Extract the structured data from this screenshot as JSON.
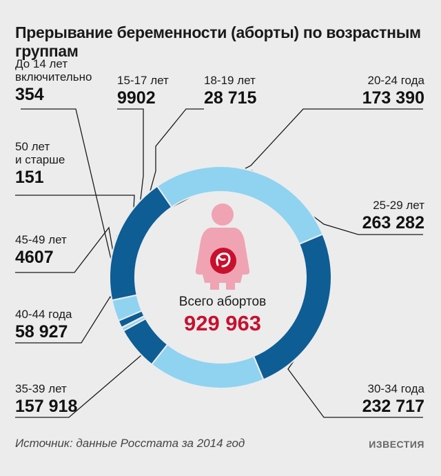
{
  "chart_data": {
    "type": "pie",
    "title": "Прерывание беременности (аборты) по возрастным группам",
    "center_label": "Всего абортов",
    "center_value": "929 963",
    "total": 929963,
    "categories": [
      "До 14 лет включительно",
      "15-17 лет",
      "18-19 лет",
      "20-24 года",
      "25-29 лет",
      "30-34 года",
      "35-39 лет",
      "40-44 года",
      "45-49 лет",
      "50 лет и старше"
    ],
    "values": [
      354,
      9902,
      28715,
      173390,
      263282,
      232717,
      157918,
      58927,
      4607,
      151
    ],
    "display_values": [
      "354",
      "9902",
      "28 715",
      "173 390",
      "263 282",
      "232 717",
      "157 918",
      "58 927",
      "4607",
      "151"
    ],
    "colors": {
      "dark": "#0e5d95",
      "light": "#8fd3f1",
      "accent": "#c8102e",
      "figure": "#f0a3b3"
    }
  },
  "labels": {
    "lt14": {
      "line1": "До 14 лет",
      "line2": "включительно",
      "value": "354"
    },
    "g15": {
      "line1": "15-17 лет",
      "value": "9902"
    },
    "g18": {
      "line1": "18-19 лет",
      "value": "28 715"
    },
    "g20": {
      "line1": "20-24 года",
      "value": "173 390"
    },
    "g50": {
      "line1": "50 лет",
      "line2": "и старше",
      "value": "151"
    },
    "g25": {
      "line1": "25-29 лет",
      "value": "263 282"
    },
    "g45": {
      "line1": "45-49 лет",
      "value": "4607"
    },
    "g40": {
      "line1": "40-44 года",
      "value": "58 927"
    },
    "g35": {
      "line1": "35-39 лет",
      "value": "157 918"
    },
    "g30": {
      "line1": "30-34 года",
      "value": "232 717"
    }
  },
  "footer": {
    "source": "Источник: данные Росстата за 2014 год",
    "logo": "ИЗВЕСТИЯ"
  }
}
